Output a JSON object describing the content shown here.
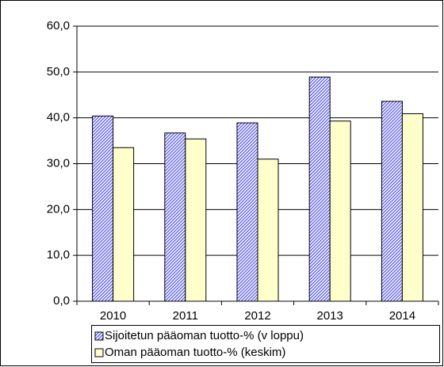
{
  "chart_data": {
    "type": "bar",
    "categories": [
      "2010",
      "2011",
      "2012",
      "2013",
      "2014"
    ],
    "series": [
      {
        "name": "Sijoitetun pääoman tuotto-% (v loppu)",
        "color": "#9999ff",
        "pattern": "diagonal",
        "values": [
          40.4,
          36.7,
          38.9,
          48.9,
          43.6
        ]
      },
      {
        "name": "Oman pääoman tuotto-% (keskim)",
        "color": "#ffffcc",
        "values": [
          33.5,
          35.4,
          31.0,
          39.3,
          40.9
        ]
      }
    ],
    "ylim": [
      0,
      60
    ],
    "yticks": [
      {
        "value": 0,
        "label": "0,0"
      },
      {
        "value": 10,
        "label": "10,0"
      },
      {
        "value": 20,
        "label": "20,0"
      },
      {
        "value": 30,
        "label": "30,0"
      },
      {
        "value": 40,
        "label": "40,0"
      },
      {
        "value": 50,
        "label": "50,0"
      },
      {
        "value": 60,
        "label": "60,0"
      }
    ],
    "grid": true,
    "legend": "bottom"
  }
}
